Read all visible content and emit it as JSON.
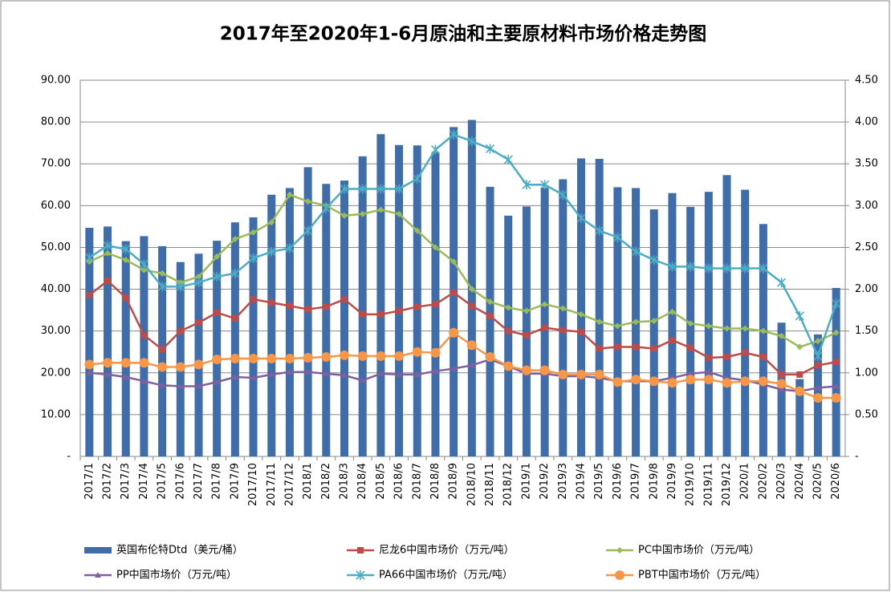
{
  "chart_data": {
    "type": "combo",
    "title": "2017年至2020年1-6月原油和主要原材料市场价格走势图",
    "categories": [
      "2017/1",
      "2017/2",
      "2017/3",
      "2017/4",
      "2017/5",
      "2017/6",
      "2017/7",
      "2017/8",
      "2017/9",
      "2017/10",
      "2017/11",
      "2017/12",
      "2018/1",
      "2018/2",
      "2018/3",
      "2018/4",
      "2018/5",
      "2018/6",
      "2018/7",
      "2018/8",
      "2018/9",
      "2018/10",
      "2018/11",
      "2018/12",
      "2019/1",
      "2019/2",
      "2019/3",
      "2019/4",
      "2019/5",
      "2019/6",
      "2019/7",
      "2019/8",
      "2019/9",
      "2019/10",
      "2019/11",
      "2019/12",
      "2020/1",
      "2020/2",
      "2020/3",
      "2020/4",
      "2020/5",
      "2020/6"
    ],
    "series": [
      {
        "name": "英国布伦特Dtd（美元/桶）",
        "type": "bar",
        "color": "#3F6DAA",
        "values": [
          54.7,
          55,
          51.5,
          52.7,
          50.3,
          46.5,
          48.5,
          51.6,
          56,
          57.2,
          62.6,
          64.2,
          69.2,
          65.2,
          66,
          71.8,
          77.1,
          74.5,
          74.4,
          72.8,
          78.8,
          80.5,
          64.5,
          57.6,
          59.8,
          64.3,
          66.3,
          71.3,
          71.2,
          64.4,
          64.2,
          59.1,
          63,
          59.7,
          63.3,
          67.3,
          63.8,
          55.6,
          32,
          18.5,
          29.2,
          40.3
        ]
      },
      {
        "name": "尼龙6中国市场价（万元/吨）",
        "type": "line",
        "axis": "y2",
        "marker": "square",
        "color": "#BE4B48",
        "values": [
          1.93,
          2.1,
          1.9,
          1.45,
          1.28,
          1.5,
          1.6,
          1.72,
          1.65,
          1.88,
          1.84,
          1.8,
          1.76,
          1.79,
          1.88,
          1.7,
          1.7,
          1.74,
          1.79,
          1.82,
          1.96,
          1.8,
          1.68,
          1.5,
          1.45,
          1.54,
          1.51,
          1.49,
          1.29,
          1.31,
          1.31,
          1.29,
          1.39,
          1.3,
          1.18,
          1.19,
          1.24,
          1.19,
          0.98,
          0.98,
          1.09,
          1.13
        ]
      },
      {
        "name": "PC中国市场价（万元/吨）",
        "type": "line",
        "axis": "y2",
        "marker": "diamond",
        "color": "#9BBB59",
        "values": [
          2.33,
          2.43,
          2.35,
          2.23,
          2.19,
          2.08,
          2.15,
          2.39,
          2.6,
          2.68,
          2.8,
          3.13,
          3.05,
          3.0,
          2.88,
          2.9,
          2.95,
          2.9,
          2.7,
          2.5,
          2.33,
          2.0,
          1.85,
          1.78,
          1.74,
          1.82,
          1.77,
          1.7,
          1.61,
          1.56,
          1.61,
          1.62,
          1.73,
          1.59,
          1.56,
          1.53,
          1.53,
          1.5,
          1.44,
          1.31,
          1.38,
          1.48
        ]
      },
      {
        "name": "PP中国市场价（万元/吨）",
        "type": "line",
        "axis": "y2",
        "marker": "triangle",
        "color": "#7E5FA0",
        "values": [
          1.0,
          0.98,
          0.95,
          0.9,
          0.85,
          0.84,
          0.84,
          0.89,
          0.95,
          0.94,
          0.98,
          1.01,
          1.01,
          0.99,
          0.97,
          0.91,
          0.99,
          0.98,
          0.98,
          1.02,
          1.05,
          1.09,
          1.16,
          1.08,
          0.99,
          0.99,
          0.96,
          0.96,
          0.94,
          0.9,
          0.9,
          0.9,
          0.94,
          0.99,
          1.01,
          0.94,
          0.91,
          0.86,
          0.8,
          0.78,
          0.82,
          0.84
        ]
      },
      {
        "name": "PA66中国市场价（万元/吨）",
        "type": "line",
        "axis": "y2",
        "marker": "star",
        "color": "#4BACC6",
        "values": [
          2.38,
          2.52,
          2.48,
          2.3,
          2.03,
          2.03,
          2.08,
          2.15,
          2.19,
          2.37,
          2.45,
          2.49,
          2.7,
          2.97,
          3.2,
          3.2,
          3.2,
          3.2,
          3.32,
          3.67,
          3.85,
          3.77,
          3.68,
          3.55,
          3.25,
          3.25,
          3.13,
          2.85,
          2.7,
          2.62,
          2.45,
          2.35,
          2.27,
          2.27,
          2.25,
          2.25,
          2.25,
          2.25,
          2.08,
          1.68,
          1.2,
          1.83
        ]
      },
      {
        "name": "PBT中国市场价（万元/吨）",
        "type": "line",
        "axis": "y2",
        "marker": "circle",
        "color": "#F79646",
        "values": [
          1.1,
          1.12,
          1.12,
          1.12,
          1.07,
          1.07,
          1.1,
          1.16,
          1.17,
          1.17,
          1.17,
          1.17,
          1.18,
          1.19,
          1.21,
          1.2,
          1.2,
          1.2,
          1.25,
          1.24,
          1.48,
          1.33,
          1.19,
          1.08,
          1.03,
          1.03,
          0.98,
          0.98,
          0.98,
          0.89,
          0.92,
          0.9,
          0.88,
          0.92,
          0.92,
          0.88,
          0.9,
          0.9,
          0.87,
          0.78,
          0.7,
          0.7
        ]
      }
    ],
    "ylim": [
      0,
      90
    ],
    "yticks": [
      {
        "value": 0,
        "label": "-"
      },
      {
        "value": 10,
        "label": "10.00"
      },
      {
        "value": 20,
        "label": "20.00"
      },
      {
        "value": 30,
        "label": "30.00"
      },
      {
        "value": 40,
        "label": "40.00"
      },
      {
        "value": 50,
        "label": "50.00"
      },
      {
        "value": 60,
        "label": "60.00"
      },
      {
        "value": 70,
        "label": "70.00"
      },
      {
        "value": 80,
        "label": "80.00"
      },
      {
        "value": 90,
        "label": "90.00"
      }
    ],
    "y2lim": [
      0,
      4.5
    ],
    "y2ticks": [
      {
        "value": 0,
        "label": "-"
      },
      {
        "value": 0.5,
        "label": "0.50"
      },
      {
        "value": 1,
        "label": "1.00"
      },
      {
        "value": 1.5,
        "label": "1.50"
      },
      {
        "value": 2,
        "label": "2.00"
      },
      {
        "value": 2.5,
        "label": "2.50"
      },
      {
        "value": 3,
        "label": "3.00"
      },
      {
        "value": 3.5,
        "label": "3.50"
      },
      {
        "value": 4,
        "label": "4.00"
      },
      {
        "value": 4.5,
        "label": "4.50"
      }
    ],
    "grid": true,
    "legend": "bottom"
  }
}
